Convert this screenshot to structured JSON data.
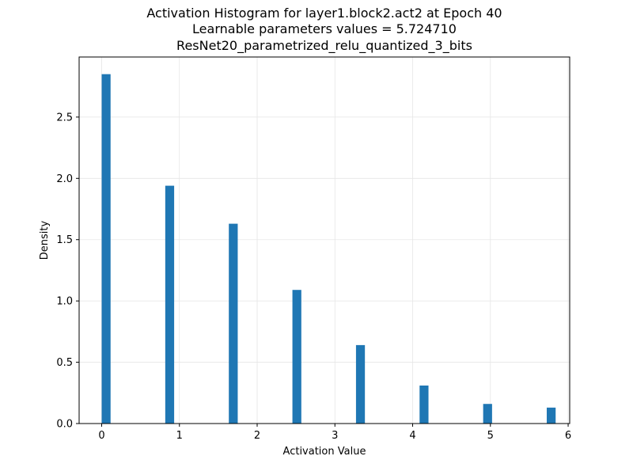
{
  "chart_data": {
    "type": "bar",
    "title_lines": [
      "Activation Histogram for layer1.block2.act2 at Epoch 40",
      "Learnable parameters values = 5.724710",
      "ResNet20_parametrized_relu_quantized_3_bits"
    ],
    "xlabel": "Activation Value",
    "ylabel": "Density",
    "xlim": [
      -0.29,
      6.02
    ],
    "ylim": [
      0,
      2.99
    ],
    "xticks": [
      0,
      1,
      2,
      3,
      4,
      5,
      6
    ],
    "xtick_labels": [
      "0",
      "1",
      "2",
      "3",
      "4",
      "5",
      "6"
    ],
    "yticks": [
      0,
      0.5,
      1.0,
      1.5,
      2.0,
      2.5
    ],
    "ytick_labels": [
      "0.0",
      "0.5",
      "1.0",
      "1.5",
      "2.0",
      "2.5"
    ],
    "grid": true,
    "bar_color": "#1f77b4",
    "bin_width": 0.1145,
    "bars": [
      {
        "x": 0.0,
        "density": 2.85
      },
      {
        "x": 0.8178,
        "density": 1.94
      },
      {
        "x": 1.6356,
        "density": 1.63
      },
      {
        "x": 2.4535,
        "density": 1.09
      },
      {
        "x": 3.2713,
        "density": 0.64
      },
      {
        "x": 4.0891,
        "density": 0.31
      },
      {
        "x": 4.9069,
        "density": 0.16
      },
      {
        "x": 5.7247,
        "density": 0.13
      }
    ]
  }
}
